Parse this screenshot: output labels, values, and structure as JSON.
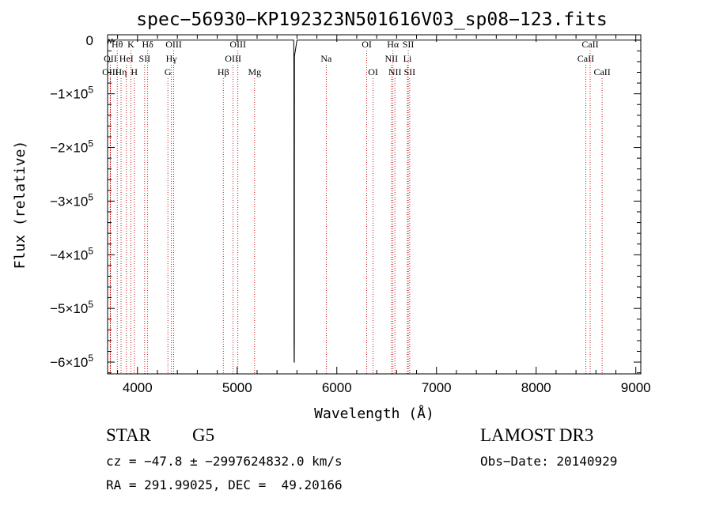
{
  "chart_data": {
    "type": "line",
    "title": "spec−56930−KP192323N501616V03_sp08−123.fits",
    "xlabel": "Wavelength (Å)",
    "ylabel": "Flux (relative)",
    "xlim": [
      3700,
      9050
    ],
    "ylim": [
      -622000,
      10000
    ],
    "x_ticks": [
      4000,
      5000,
      6000,
      7000,
      8000,
      9000
    ],
    "x_tick_labels": [
      "4000",
      "5000",
      "6000",
      "7000",
      "8000",
      "9000"
    ],
    "y_ticks": [
      0,
      -100000,
      -200000,
      -300000,
      -400000,
      -500000,
      -600000
    ],
    "y_tick_mantissa": [
      "0",
      "−1×10",
      "−2×10",
      "−3×10",
      "−4×10",
      "−5×10",
      "−6×10"
    ],
    "y_tick_exponent": [
      "",
      "5",
      "5",
      "5",
      "5",
      "5",
      "5"
    ],
    "series": [
      {
        "name": "flux",
        "x": [
          3700,
          3715,
          3730,
          3745,
          3760,
          3780,
          3800,
          3900,
          4100,
          4400,
          4800,
          5200,
          5500,
          5568,
          5569,
          5570,
          5571,
          5572,
          5573,
          5574,
          5575,
          5600,
          6000,
          7000,
          8000,
          9000,
          9050
        ],
        "y": [
          -8000,
          1500,
          -5000,
          2000,
          -3000,
          800,
          0,
          0,
          0,
          0,
          0,
          0,
          0,
          0,
          -50000,
          -200000,
          -560000,
          -600000,
          -600000,
          -560000,
          -30000,
          0,
          0,
          0,
          0,
          0,
          0
        ]
      }
    ],
    "spectral_lines": [
      {
        "label": "Hθ",
        "wavelength": 3797,
        "row": 1
      },
      {
        "label": "OII",
        "wavelength": 3727,
        "row": 2
      },
      {
        "label": "OIII",
        "wavelength": 3727,
        "row": 3
      },
      {
        "label": "Hη",
        "wavelength": 3835,
        "row": 3
      },
      {
        "label": "HeI",
        "wavelength": 3889,
        "row": 2
      },
      {
        "label": "K",
        "wavelength": 3934,
        "row": 1
      },
      {
        "label": "H",
        "wavelength": 3968,
        "row": 3
      },
      {
        "label": "SII",
        "wavelength": 4072,
        "row": 2
      },
      {
        "label": "Hδ",
        "wavelength": 4102,
        "row": 1
      },
      {
        "label": "OIII",
        "wavelength": 4363,
        "row": 1
      },
      {
        "label": "Hγ",
        "wavelength": 4340,
        "row": 2
      },
      {
        "label": "G",
        "wavelength": 4305,
        "row": 3
      },
      {
        "label": "OIII",
        "wavelength": 5007,
        "row": 1
      },
      {
        "label": "OIII",
        "wavelength": 4959,
        "row": 2
      },
      {
        "label": "Hβ",
        "wavelength": 4861,
        "row": 3
      },
      {
        "label": "Mg",
        "wavelength": 5175,
        "row": 3
      },
      {
        "label": "Na",
        "wavelength": 5894,
        "row": 2
      },
      {
        "label": "OI",
        "wavelength": 6300,
        "row": 1
      },
      {
        "label": "OI",
        "wavelength": 6364,
        "row": 3
      },
      {
        "label": "Hα",
        "wavelength": 6563,
        "row": 1
      },
      {
        "label": "NII",
        "wavelength": 6548,
        "row": 2
      },
      {
        "label": "NII",
        "wavelength": 6583,
        "row": 3
      },
      {
        "label": "SII",
        "wavelength": 6717,
        "row": 1
      },
      {
        "label": "Li",
        "wavelength": 6708,
        "row": 2
      },
      {
        "label": "SII",
        "wavelength": 6731,
        "row": 3
      },
      {
        "label": "CaII",
        "wavelength": 8542,
        "row": 1
      },
      {
        "label": "CaII",
        "wavelength": 8498,
        "row": 2
      },
      {
        "label": "CaII",
        "wavelength": 8662,
        "row": 3
      }
    ],
    "line_color": "#c00000",
    "grid": false,
    "legend": "none"
  },
  "info": {
    "object_class": "STAR",
    "subclass": "G5",
    "survey": "LAMOST DR3",
    "cz": "cz = −47.8 ± −2997624832.0 km/s",
    "obs_date": "Obs−Date: 20140929",
    "coords": "RA = 291.99025, DEC =  49.20166"
  }
}
